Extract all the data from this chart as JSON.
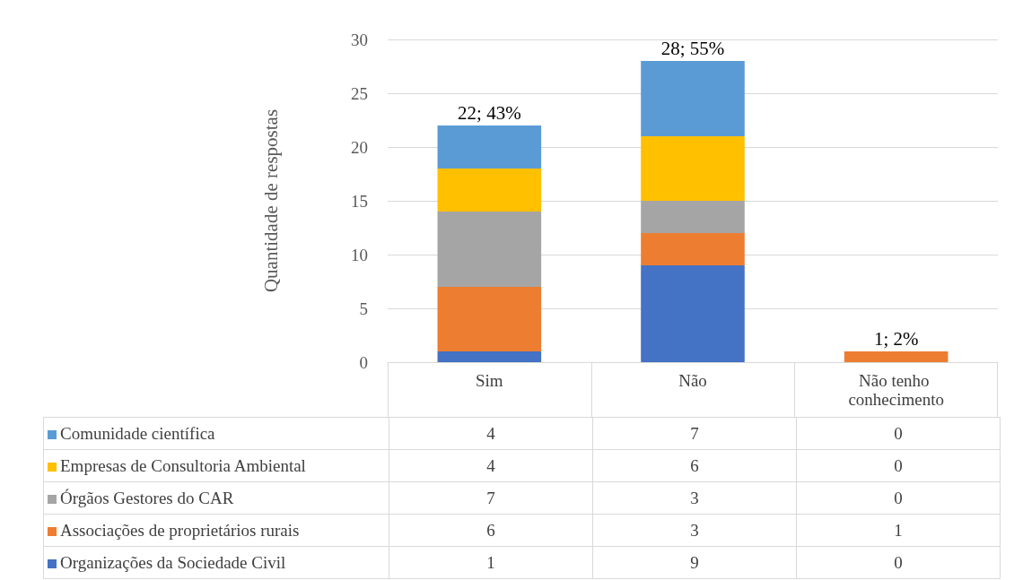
{
  "chart_data": {
    "type": "bar",
    "stacked": true,
    "ylabel": "Quantidade de respostas",
    "categories": [
      "Sim",
      "Não",
      "Não tenho conhecimento"
    ],
    "series": [
      {
        "name": "Organizações da Sociedade Civil",
        "color": "#4472c4",
        "values": [
          1,
          9,
          0
        ]
      },
      {
        "name": "Associações de proprietários rurais",
        "color": "#ed7d31",
        "values": [
          6,
          3,
          1
        ]
      },
      {
        "name": "Órgãos Gestores do CAR",
        "color": "#a5a5a5",
        "values": [
          7,
          3,
          0
        ]
      },
      {
        "name": "Empresas de Consultoria Ambiental",
        "color": "#ffc000",
        "values": [
          4,
          6,
          0
        ]
      },
      {
        "name": "Comunidade científica",
        "color": "#5b9bd5",
        "values": [
          4,
          7,
          0
        ]
      }
    ],
    "totals": [
      "22; 43%",
      "28; 55%",
      "1; 2%"
    ],
    "ylim": [
      0,
      30
    ],
    "yticks": [
      0,
      5,
      10,
      15,
      20,
      25,
      30
    ],
    "grid": "y",
    "legend": "bottom left",
    "data_labels": true
  }
}
